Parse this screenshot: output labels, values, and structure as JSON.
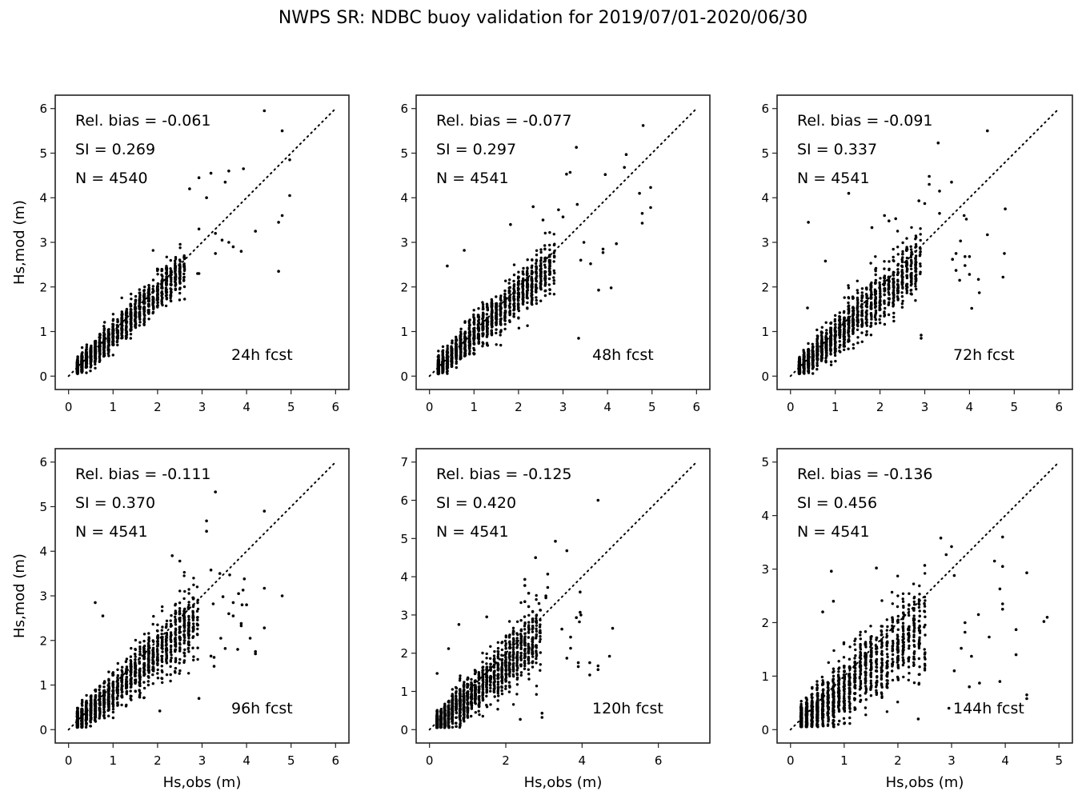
{
  "figure": {
    "title": "NWPS SR: NDBC buoy validation for 2019/07/01-2020/06/30",
    "marker_color": "#000000",
    "axes_color": "#222222"
  },
  "chart_data": [
    {
      "type": "scatter",
      "panel": "24h",
      "label": "24h fcst",
      "rel_bias_text": "Rel. bias = -0.061",
      "si_text": "SI =  0.269",
      "n_text": "N = 4540",
      "rel_bias": -0.061,
      "si": 0.269,
      "n": 4540,
      "xlabel": "",
      "ylabel": "Hs,mod (m)",
      "xlim": [
        -0.3,
        6.3
      ],
      "ylim": [
        -0.3,
        6.3
      ],
      "xticks": [
        0,
        1,
        2,
        3,
        4,
        5,
        6
      ],
      "yticks": [
        0,
        1,
        2,
        3,
        4,
        5,
        6
      ],
      "one_to_one_line": [
        0,
        6
      ],
      "cluster": {
        "slope": 0.94,
        "spread": 0.22,
        "xmax": 2.6
      },
      "outliers": [
        [
          4.4,
          5.95
        ],
        [
          4.8,
          5.5
        ],
        [
          4.97,
          4.85
        ],
        [
          4.97,
          4.05
        ],
        [
          4.8,
          3.6
        ],
        [
          4.72,
          3.45
        ],
        [
          4.72,
          2.35
        ],
        [
          4.2,
          3.25
        ],
        [
          3.88,
          2.8
        ],
        [
          3.6,
          4.6
        ],
        [
          3.2,
          4.55
        ],
        [
          2.93,
          4.45
        ],
        [
          2.72,
          4.2
        ],
        [
          3.1,
          4.0
        ],
        [
          3.52,
          4.35
        ],
        [
          3.93,
          4.65
        ],
        [
          2.93,
          3.3
        ],
        [
          3.3,
          3.2
        ],
        [
          3.6,
          3.0
        ],
        [
          3.7,
          2.9
        ],
        [
          2.93,
          2.3
        ],
        [
          3.3,
          2.75
        ],
        [
          3.45,
          3.05
        ],
        [
          2.9,
          2.3
        ]
      ]
    },
    {
      "type": "scatter",
      "panel": "48h",
      "label": "48h fcst",
      "rel_bias_text": "Rel. bias = -0.077",
      "si_text": "SI =  0.297",
      "n_text": "N = 4541",
      "rel_bias": -0.077,
      "si": 0.297,
      "n": 4541,
      "xlabel": "",
      "ylabel": "",
      "xlim": [
        -0.3,
        6.3
      ],
      "ylim": [
        -0.3,
        6.3
      ],
      "xticks": [
        0,
        1,
        2,
        3,
        4,
        5,
        6
      ],
      "yticks": [
        0,
        1,
        2,
        3,
        4,
        5,
        6
      ],
      "one_to_one_line": [
        0,
        6
      ],
      "cluster": {
        "slope": 0.92,
        "spread": 0.26,
        "xmax": 2.8
      },
      "outliers": [
        [
          4.8,
          5.62
        ],
        [
          3.3,
          5.13
        ],
        [
          4.42,
          4.97
        ],
        [
          4.38,
          4.68
        ],
        [
          3.16,
          4.57
        ],
        [
          3.08,
          4.53
        ],
        [
          3.95,
          4.52
        ],
        [
          4.97,
          4.23
        ],
        [
          4.72,
          4.1
        ],
        [
          3.32,
          3.85
        ],
        [
          2.33,
          3.8
        ],
        [
          4.97,
          3.78
        ],
        [
          4.78,
          3.65
        ],
        [
          4.78,
          3.43
        ],
        [
          2.9,
          3.73
        ],
        [
          3.0,
          3.57
        ],
        [
          2.55,
          3.5
        ],
        [
          1.82,
          3.4
        ],
        [
          4.2,
          2.97
        ],
        [
          3.9,
          2.85
        ],
        [
          3.9,
          2.77
        ],
        [
          3.62,
          2.52
        ],
        [
          3.8,
          1.93
        ],
        [
          4.08,
          1.98
        ],
        [
          3.35,
          0.85
        ],
        [
          0.78,
          2.82
        ],
        [
          0.4,
          2.47
        ],
        [
          3.4,
          2.6
        ],
        [
          3.47,
          3.0
        ]
      ]
    },
    {
      "type": "scatter",
      "panel": "72h",
      "label": "72h fcst",
      "rel_bias_text": "Rel. bias = -0.091",
      "si_text": "SI =  0.337",
      "n_text": "N = 4541",
      "rel_bias": -0.091,
      "si": 0.337,
      "n": 4541,
      "xlabel": "",
      "ylabel": "",
      "xlim": [
        -0.3,
        6.3
      ],
      "ylim": [
        -0.3,
        6.3
      ],
      "xticks": [
        0,
        1,
        2,
        3,
        4,
        5,
        6
      ],
      "yticks": [
        0,
        1,
        2,
        3,
        4,
        5,
        6
      ],
      "one_to_one_line": [
        0,
        6
      ],
      "cluster": {
        "slope": 0.9,
        "spread": 0.3,
        "xmax": 2.9
      },
      "outliers": [
        [
          4.4,
          5.5
        ],
        [
          3.3,
          5.23
        ],
        [
          3.1,
          4.48
        ],
        [
          3.1,
          4.3
        ],
        [
          3.6,
          4.35
        ],
        [
          3.33,
          4.15
        ],
        [
          1.3,
          4.1
        ],
        [
          2.87,
          3.93
        ],
        [
          3.0,
          3.87
        ],
        [
          4.8,
          3.75
        ],
        [
          3.33,
          3.65
        ],
        [
          3.88,
          3.6
        ],
        [
          3.93,
          3.52
        ],
        [
          2.1,
          3.6
        ],
        [
          2.2,
          3.48
        ],
        [
          2.35,
          3.53
        ],
        [
          0.4,
          3.45
        ],
        [
          1.82,
          3.33
        ],
        [
          4.4,
          3.17
        ],
        [
          3.8,
          3.03
        ],
        [
          3.7,
          2.75
        ],
        [
          3.9,
          2.68
        ],
        [
          4.0,
          2.68
        ],
        [
          4.78,
          2.75
        ],
        [
          3.62,
          2.62
        ],
        [
          3.7,
          2.37
        ],
        [
          3.9,
          2.48
        ],
        [
          4.0,
          2.28
        ],
        [
          3.78,
          2.15
        ],
        [
          4.2,
          2.17
        ],
        [
          4.22,
          1.87
        ],
        [
          4.75,
          2.22
        ],
        [
          4.05,
          1.52
        ],
        [
          0.78,
          2.58
        ],
        [
          0.38,
          1.53
        ],
        [
          2.92,
          0.92
        ],
        [
          2.92,
          0.85
        ]
      ]
    },
    {
      "type": "scatter",
      "panel": "96h",
      "label": "96h fcst",
      "rel_bias_text": "Rel. bias = -0.111",
      "si_text": "SI =  0.370",
      "n_text": "N = 4541",
      "rel_bias": -0.111,
      "si": 0.37,
      "n": 4541,
      "xlabel": "Hs,obs (m)",
      "ylabel": "Hs,mod (m)",
      "xlim": [
        -0.3,
        6.3
      ],
      "ylim": [
        -0.3,
        6.3
      ],
      "xticks": [
        0,
        1,
        2,
        3,
        4,
        5,
        6
      ],
      "yticks": [
        0,
        1,
        2,
        3,
        4,
        5,
        6
      ],
      "one_to_one_line": [
        0,
        6
      ],
      "cluster": {
        "slope": 0.86,
        "spread": 0.32,
        "xmax": 2.9
      },
      "outliers": [
        [
          3.3,
          5.33
        ],
        [
          4.4,
          4.9
        ],
        [
          3.1,
          4.68
        ],
        [
          3.1,
          4.45
        ],
        [
          2.33,
          3.9
        ],
        [
          2.5,
          3.78
        ],
        [
          3.2,
          3.58
        ],
        [
          3.4,
          3.5
        ],
        [
          3.62,
          3.47
        ],
        [
          3.95,
          3.38
        ],
        [
          4.8,
          3.0
        ],
        [
          4.4,
          3.17
        ],
        [
          3.92,
          3.13
        ],
        [
          3.82,
          3.05
        ],
        [
          3.47,
          2.98
        ],
        [
          3.7,
          2.85
        ],
        [
          3.9,
          2.8
        ],
        [
          4.0,
          2.8
        ],
        [
          3.25,
          2.82
        ],
        [
          3.6,
          2.6
        ],
        [
          3.7,
          2.55
        ],
        [
          3.88,
          2.38
        ],
        [
          3.88,
          2.33
        ],
        [
          4.4,
          2.28
        ],
        [
          4.08,
          2.05
        ],
        [
          3.42,
          2.05
        ],
        [
          3.52,
          1.82
        ],
        [
          3.8,
          1.8
        ],
        [
          4.2,
          1.75
        ],
        [
          4.2,
          1.7
        ],
        [
          3.2,
          1.65
        ],
        [
          3.27,
          1.62
        ],
        [
          3.27,
          1.42
        ],
        [
          0.6,
          2.85
        ],
        [
          0.77,
          2.55
        ],
        [
          2.93,
          0.7
        ],
        [
          2.05,
          0.42
        ]
      ]
    },
    {
      "type": "scatter",
      "panel": "120h",
      "label": "120h fcst",
      "rel_bias_text": "Rel. bias = -0.125",
      "si_text": "SI =  0.420",
      "n_text": "N = 4541",
      "rel_bias": -0.125,
      "si": 0.42,
      "n": 4541,
      "xlabel": "Hs,obs (m)",
      "ylabel": "",
      "xlim": [
        -0.35,
        7.35
      ],
      "ylim": [
        -0.35,
        7.35
      ],
      "xticks": [
        0,
        2,
        4,
        6
      ],
      "yticks": [
        0,
        1,
        2,
        3,
        4,
        5,
        6,
        7
      ],
      "one_to_one_line": [
        0,
        7
      ],
      "cluster": {
        "slope": 0.84,
        "spread": 0.36,
        "xmax": 2.9
      },
      "outliers": [
        [
          4.42,
          6.0
        ],
        [
          3.3,
          4.93
        ],
        [
          3.6,
          4.68
        ],
        [
          2.78,
          4.5
        ],
        [
          3.1,
          4.07
        ],
        [
          2.5,
          3.93
        ],
        [
          2.5,
          3.77
        ],
        [
          3.1,
          3.72
        ],
        [
          3.95,
          3.6
        ],
        [
          2.6,
          3.57
        ],
        [
          3.05,
          3.5
        ],
        [
          3.05,
          3.45
        ],
        [
          2.5,
          3.35
        ],
        [
          2.87,
          3.3
        ],
        [
          2.6,
          3.22
        ],
        [
          3.95,
          3.07
        ],
        [
          3.97,
          3.0
        ],
        [
          3.85,
          2.93
        ],
        [
          3.93,
          2.82
        ],
        [
          4.8,
          2.65
        ],
        [
          3.47,
          2.63
        ],
        [
          3.7,
          2.42
        ],
        [
          3.7,
          2.13
        ],
        [
          3.6,
          1.87
        ],
        [
          4.72,
          1.92
        ],
        [
          3.9,
          1.75
        ],
        [
          3.9,
          1.65
        ],
        [
          4.2,
          1.75
        ],
        [
          4.42,
          1.67
        ],
        [
          4.42,
          1.57
        ],
        [
          4.2,
          1.43
        ],
        [
          1.5,
          2.95
        ],
        [
          0.77,
          2.75
        ],
        [
          0.5,
          2.12
        ],
        [
          0.2,
          1.47
        ],
        [
          2.95,
          0.43
        ],
        [
          2.95,
          0.32
        ],
        [
          2.38,
          0.27
        ]
      ]
    },
    {
      "type": "scatter",
      "panel": "144h",
      "label": "144h fcst",
      "rel_bias_text": "Rel. bias = -0.136",
      "si_text": "SI =  0.456",
      "n_text": "N = 4541",
      "rel_bias": -0.136,
      "si": 0.456,
      "n": 4541,
      "xlabel": "Hs,obs (m)",
      "ylabel": "",
      "xlim": [
        -0.25,
        5.25
      ],
      "ylim": [
        -0.25,
        5.25
      ],
      "xticks": [
        0,
        1,
        2,
        3,
        4,
        5
      ],
      "yticks": [
        0,
        1,
        2,
        3,
        4,
        5
      ],
      "one_to_one_line": [
        0,
        5
      ],
      "cluster": {
        "slope": 0.78,
        "spread": 0.4,
        "xmax": 2.5
      },
      "outliers": [
        [
          2.8,
          3.58
        ],
        [
          3.95,
          3.6
        ],
        [
          3.0,
          3.42
        ],
        [
          2.9,
          3.27
        ],
        [
          3.8,
          3.15
        ],
        [
          3.95,
          3.05
        ],
        [
          2.5,
          3.07
        ],
        [
          4.4,
          2.93
        ],
        [
          1.6,
          3.02
        ],
        [
          0.76,
          2.96
        ],
        [
          3.05,
          2.88
        ],
        [
          3.9,
          2.63
        ],
        [
          3.95,
          2.35
        ],
        [
          3.95,
          2.25
        ],
        [
          3.5,
          2.15
        ],
        [
          4.78,
          2.1
        ],
        [
          4.72,
          2.02
        ],
        [
          3.25,
          2.0
        ],
        [
          4.2,
          1.87
        ],
        [
          3.25,
          1.82
        ],
        [
          3.7,
          1.73
        ],
        [
          3.18,
          1.52
        ],
        [
          3.37,
          1.37
        ],
        [
          4.2,
          1.4
        ],
        [
          3.05,
          1.1
        ],
        [
          3.9,
          0.9
        ],
        [
          3.52,
          0.87
        ],
        [
          3.33,
          0.8
        ],
        [
          4.4,
          0.65
        ],
        [
          4.4,
          0.58
        ],
        [
          2.95,
          0.4
        ],
        [
          2.38,
          0.2
        ],
        [
          0.6,
          2.2
        ],
        [
          0.8,
          2.4
        ]
      ]
    }
  ]
}
